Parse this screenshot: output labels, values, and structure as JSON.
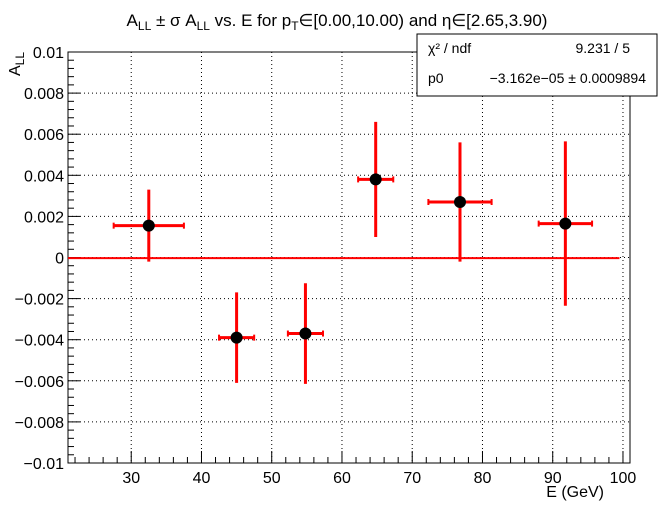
{
  "chart_data": {
    "type": "scatter",
    "title": {
      "parts": [
        "A",
        "LL",
        " ± σ A",
        "LL",
        " vs. E for p",
        "T",
        "∈[0.00,10.00) and η∈[2.65,3.90)"
      ]
    },
    "xlabel": "E (GeV)",
    "ylabel": {
      "main": "A",
      "sub": "LL"
    },
    "xlim": [
      21,
      101
    ],
    "ylim": [
      -0.01,
      0.01
    ],
    "grid": true,
    "x_ticks": [
      30,
      40,
      50,
      60,
      70,
      80,
      90,
      100
    ],
    "y_ticks": [
      {
        "v": 0.01,
        "label": "0.01"
      },
      {
        "v": 0.008,
        "label": "0.008"
      },
      {
        "v": 0.006,
        "label": "0.006"
      },
      {
        "v": 0.004,
        "label": "0.004"
      },
      {
        "v": 0.002,
        "label": "0.002"
      },
      {
        "v": 0,
        "label": "0"
      },
      {
        "v": -0.002,
        "label": "−0.002"
      },
      {
        "v": -0.004,
        "label": "−0.004"
      },
      {
        "v": -0.006,
        "label": "−0.006"
      },
      {
        "v": -0.008,
        "label": "−0.008"
      },
      {
        "v": -0.01,
        "label": "−0.01"
      }
    ],
    "points": [
      {
        "x": 32.5,
        "y": 0.00155,
        "xerr": 5.0,
        "yerr": 0.00175
      },
      {
        "x": 45.0,
        "y": -0.0039,
        "xerr": 2.5,
        "yerr": 0.0022
      },
      {
        "x": 54.8,
        "y": -0.0037,
        "xerr": 2.5,
        "yerr": 0.00245
      },
      {
        "x": 64.8,
        "y": 0.0038,
        "xerr": 2.5,
        "yerr": 0.0028
      },
      {
        "x": 76.8,
        "y": 0.0027,
        "xerr": 4.5,
        "yerr": 0.0029
      },
      {
        "x": 91.8,
        "y": 0.00165,
        "xerr": 3.8,
        "yerr": 0.004
      }
    ],
    "fit": {
      "value": -3.162e-05,
      "xrange": [
        21,
        99.5
      ]
    },
    "colors": {
      "error_bar": "#ff0000",
      "marker": "#000000",
      "fit_line": "#ff0000",
      "grid": "#000000"
    }
  },
  "stats_box": {
    "chi2_label": "χ² / ndf",
    "chi2_value": "9.231 / 5",
    "p0_label": "p0",
    "p0_value": "−3.162e−05 ± 0.0009894"
  }
}
